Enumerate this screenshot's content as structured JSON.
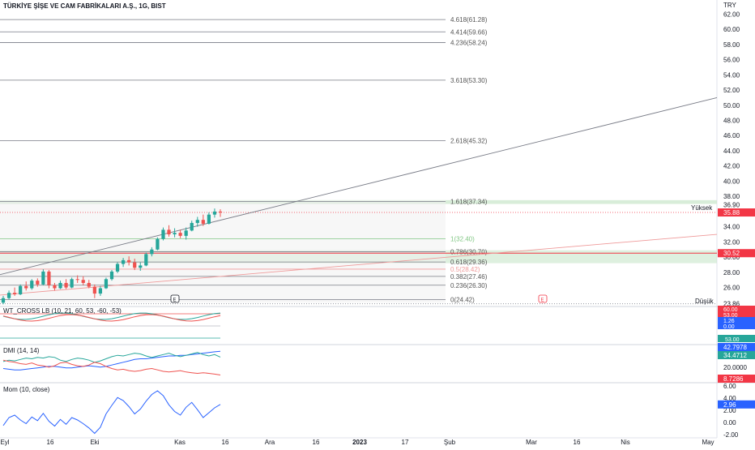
{
  "header": {
    "symbol_title": "TÜRKİYE ŞİŞE VE CAM FABRİKALARI A.Ş., 1G, BIST",
    "currency": "TRY"
  },
  "colors": {
    "bull": "#26a69a",
    "bear": "#ef5350",
    "fib_line": "#787b86",
    "trend_line": "#787b86",
    "trend_line_red": "#ef9a9a",
    "price_badge": "#f23645",
    "green_zone": "#c8e6c9",
    "dmi_plus": "#26a69a",
    "dmi_minus": "#ef5350",
    "adx": "#2962ff",
    "mom": "#2962ff"
  },
  "price_axis": {
    "ticks": [
      "62.00",
      "60.00",
      "58.00",
      "56.00",
      "54.00",
      "52.00",
      "50.00",
      "48.00",
      "46.00",
      "44.00",
      "42.00",
      "40.00",
      "38.00",
      "36.90",
      "34.00",
      "32.00",
      "30.00",
      "28.00",
      "26.00",
      "23.86"
    ],
    "tick_values": [
      62,
      60,
      58,
      56,
      54,
      52,
      50,
      48,
      46,
      44,
      42,
      40,
      38,
      36.9,
      34,
      32,
      30,
      28,
      26,
      23.86
    ],
    "badges": [
      {
        "label": "35.88",
        "value": 35.88,
        "color": "#f23645"
      },
      {
        "label": "30.52",
        "value": 30.52,
        "color": "#f23645"
      }
    ],
    "yuksek_label": "Yüksek",
    "dusuk_label": "Düşük"
  },
  "fib_levels": [
    {
      "label": "4.618(61.28)",
      "value": 61.28,
      "color": "#787b86"
    },
    {
      "label": "4.414(59.66)",
      "value": 59.66,
      "color": "#787b86"
    },
    {
      "label": "4.236(58.24)",
      "value": 58.24,
      "color": "#787b86"
    },
    {
      "label": "3.618(53.30)",
      "value": 53.3,
      "color": "#787b86"
    },
    {
      "label": "2.618(45.32)",
      "value": 45.32,
      "color": "#787b86"
    },
    {
      "label": "1.618(37.34)",
      "value": 37.34,
      "color": "#787b86"
    },
    {
      "label": "1(32.40)",
      "value": 32.4,
      "color": "#81c784"
    },
    {
      "label": "0.786(30.70)",
      "value": 30.7,
      "color": "#787b86"
    },
    {
      "label": "0.618(29.36)",
      "value": 29.36,
      "color": "#787b86"
    },
    {
      "label": "0.5(28.42)",
      "value": 28.42,
      "color": "#ef9a9a"
    },
    {
      "label": "0.382(27.46)",
      "value": 27.46,
      "color": "#787b86"
    },
    {
      "label": "0.236(26.30)",
      "value": 26.3,
      "color": "#787b86"
    },
    {
      "label": "0(24.42)",
      "value": 24.42,
      "color": "#787b86"
    }
  ],
  "time_axis": {
    "labels": [
      "Eyl",
      "16",
      "Eki",
      "Kas",
      "16",
      "Ara",
      "16",
      "2023",
      "17",
      "Şub",
      "Mar",
      "16",
      "Nis",
      "May"
    ],
    "bold_label": "2023"
  },
  "event_markers": [
    "E",
    "E"
  ],
  "wt_cross": {
    "title": "WT_CROSS LB (10, 21, 60, 53, -60, -53)",
    "badges": [
      "60.00",
      "53.00",
      "1.26",
      "0.00"
    ],
    "badge_level": "53.00"
  },
  "dmi": {
    "title": "DMI (14, 14)",
    "axis_ticks": [
      "20.0000"
    ],
    "badges": [
      {
        "label": "42.7978",
        "color": "#2962ff"
      },
      {
        "label": "34.4712",
        "color": "#26a69a"
      },
      {
        "label": "8.7286",
        "color": "#f23645"
      }
    ]
  },
  "mom": {
    "title": "Mom (10, close)",
    "axis_ticks": [
      "6.00",
      "4.00",
      "2.00",
      "0.00",
      "-2.00"
    ],
    "tick_values": [
      6,
      4,
      2,
      0,
      -2
    ],
    "badge": "2.96"
  },
  "chart_data": {
    "type": "candlestick",
    "title": "TÜRKİYE ŞİŞE VE CAM FABRİKALARI A.Ş., 1G, BIST",
    "ylim": [
      23.5,
      63
    ],
    "candles": [
      [
        24.0,
        24.9,
        23.8,
        24.6
      ],
      [
        24.6,
        25.6,
        24.4,
        25.3
      ],
      [
        25.3,
        26.0,
        24.9,
        25.1
      ],
      [
        25.1,
        26.4,
        25.0,
        26.2
      ],
      [
        26.2,
        26.8,
        25.6,
        25.9
      ],
      [
        25.9,
        27.1,
        25.7,
        26.9
      ],
      [
        26.9,
        27.2,
        26.1,
        26.4
      ],
      [
        26.4,
        28.4,
        26.3,
        28.1
      ],
      [
        28.1,
        28.3,
        25.9,
        26.3
      ],
      [
        26.3,
        26.6,
        25.6,
        25.9
      ],
      [
        25.9,
        26.9,
        25.8,
        26.6
      ],
      [
        26.6,
        27.1,
        25.8,
        26.0
      ],
      [
        26.0,
        27.3,
        25.9,
        27.1
      ],
      [
        27.1,
        27.6,
        26.6,
        27.0
      ],
      [
        27.0,
        27.5,
        26.3,
        26.6
      ],
      [
        26.6,
        27.0,
        25.9,
        26.1
      ],
      [
        26.1,
        26.4,
        24.6,
        25.2
      ],
      [
        25.2,
        26.2,
        24.9,
        25.9
      ],
      [
        25.9,
        27.3,
        25.8,
        27.1
      ],
      [
        27.1,
        28.3,
        26.9,
        28.1
      ],
      [
        28.1,
        29.3,
        27.9,
        29.1
      ],
      [
        29.1,
        29.9,
        28.7,
        29.6
      ],
      [
        29.6,
        30.1,
        28.9,
        29.3
      ],
      [
        29.3,
        29.8,
        28.3,
        28.6
      ],
      [
        28.6,
        29.3,
        28.2,
        28.9
      ],
      [
        28.9,
        30.6,
        28.8,
        30.4
      ],
      [
        30.4,
        31.3,
        30.1,
        31.0
      ],
      [
        31.0,
        32.6,
        30.9,
        32.4
      ],
      [
        32.4,
        33.9,
        32.2,
        33.6
      ],
      [
        33.6,
        34.2,
        32.7,
        33.0
      ],
      [
        33.0,
        33.8,
        32.6,
        33.2
      ],
      [
        33.2,
        33.6,
        32.5,
        32.8
      ],
      [
        32.8,
        33.9,
        32.3,
        33.5
      ],
      [
        33.5,
        34.8,
        33.4,
        34.5
      ],
      [
        34.5,
        35.3,
        34.0,
        34.9
      ],
      [
        34.9,
        35.6,
        34.1,
        34.4
      ],
      [
        34.4,
        35.9,
        34.3,
        35.6
      ],
      [
        35.6,
        36.4,
        35.2,
        36.0
      ],
      [
        36.0,
        36.3,
        35.3,
        35.88
      ]
    ],
    "indicators": {
      "dmi_plus": [
        28,
        30,
        29,
        31,
        33,
        32,
        34,
        33,
        35,
        34,
        30,
        28,
        31,
        33,
        32,
        30,
        27,
        29,
        32,
        35,
        37,
        36,
        38,
        40,
        39,
        36,
        34,
        36,
        38,
        40,
        37,
        35,
        37,
        39,
        41,
        38,
        36,
        38,
        34.47
      ],
      "dmi_minus": [
        30,
        28,
        27,
        25,
        24,
        26,
        23,
        22,
        20,
        22,
        26,
        27,
        24,
        22,
        21,
        23,
        27,
        25,
        21,
        18,
        16,
        17,
        15,
        14,
        15,
        17,
        18,
        16,
        14,
        13,
        14,
        15,
        13,
        12,
        11,
        12,
        11,
        10,
        8.73
      ],
      "adx": [
        18,
        17,
        16,
        16,
        17,
        18,
        19,
        20,
        21,
        21,
        20,
        19,
        19,
        20,
        21,
        22,
        21,
        20,
        21,
        23,
        25,
        27,
        29,
        31,
        32,
        32,
        33,
        34,
        35,
        36,
        36,
        37,
        37,
        38,
        39,
        40,
        41,
        42,
        42.8
      ],
      "momentum": [
        -0.5,
        0.8,
        1.2,
        0.4,
        -0.2,
        0.9,
        0.3,
        1.5,
        0.2,
        -0.6,
        0.5,
        -0.3,
        0.8,
        0.4,
        -0.2,
        -0.9,
        -1.8,
        -0.8,
        1.4,
        2.8,
        4.1,
        3.6,
        2.6,
        1.4,
        2.2,
        3.5,
        4.6,
        5.2,
        4.4,
        2.9,
        1.8,
        1.2,
        2.5,
        3.3,
        2.1,
        0.8,
        1.6,
        2.4,
        2.96
      ]
    }
  }
}
